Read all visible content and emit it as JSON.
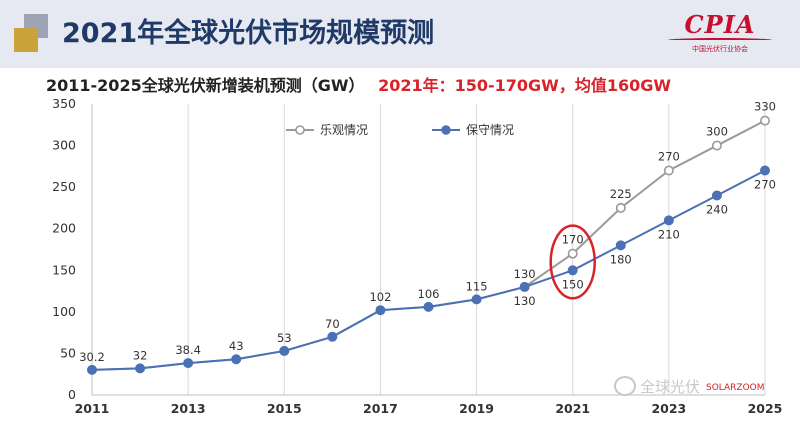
{
  "header": {
    "title": "2021年全球光伏市场规模预测",
    "logo_text": "CPIA",
    "logo_subtext": "中国光伏行业协会"
  },
  "subtitle": {
    "left": "2011-2025全球光伏新增装机预测（GW）",
    "right": "2021年：150-170GW，均值160GW"
  },
  "watermark": {
    "text": "全球光伏",
    "mark": "SOLARZOOM"
  },
  "colors": {
    "optimistic": "#9a9a9a",
    "conservative": "#4a70b5",
    "highlight": "#d8232a",
    "title": "#1f3a68"
  },
  "chart_data": {
    "type": "line",
    "title": "",
    "xlabel": "",
    "ylabel": "",
    "x": [
      2011,
      2012,
      2013,
      2014,
      2015,
      2016,
      2017,
      2018,
      2019,
      2020,
      2021,
      2022,
      2023,
      2024,
      2025
    ],
    "x_tick_labels": [
      "2011",
      "2013",
      "2015",
      "2017",
      "2019",
      "2021",
      "2023",
      "2025"
    ],
    "y_ticks": [
      0,
      50,
      100,
      150,
      200,
      250,
      300,
      350
    ],
    "ylim": [
      0,
      350
    ],
    "grid": "vertical",
    "legend_position": "top-left",
    "series": [
      {
        "name": "乐观情况",
        "marker": "hollow-circle",
        "values": [
          30.2,
          32,
          38.4,
          43,
          53,
          70,
          102,
          106,
          115,
          130,
          170,
          225,
          270,
          300,
          330
        ],
        "labels": [
          "",
          "",
          "",
          "",
          "",
          "",
          "",
          "",
          "",
          "",
          "170",
          "225",
          "270",
          "300",
          "330"
        ]
      },
      {
        "name": "保守情况",
        "marker": "filled-circle",
        "values": [
          30.2,
          32,
          38.4,
          43,
          53,
          70,
          102,
          106,
          115,
          130,
          150,
          180,
          210,
          240,
          270
        ],
        "labels": [
          "30.2",
          "32",
          "38.4",
          "43",
          "53",
          "70",
          "102",
          "106",
          "115",
          "130",
          "150",
          "180",
          "210",
          "240",
          "270"
        ],
        "extra_labels": [
          {
            "x": 2020,
            "text": "130"
          }
        ]
      }
    ],
    "annotations": [
      {
        "type": "ellipse",
        "x": 2021,
        "y_range": [
          150,
          170
        ],
        "color": "#d8232a"
      }
    ]
  }
}
